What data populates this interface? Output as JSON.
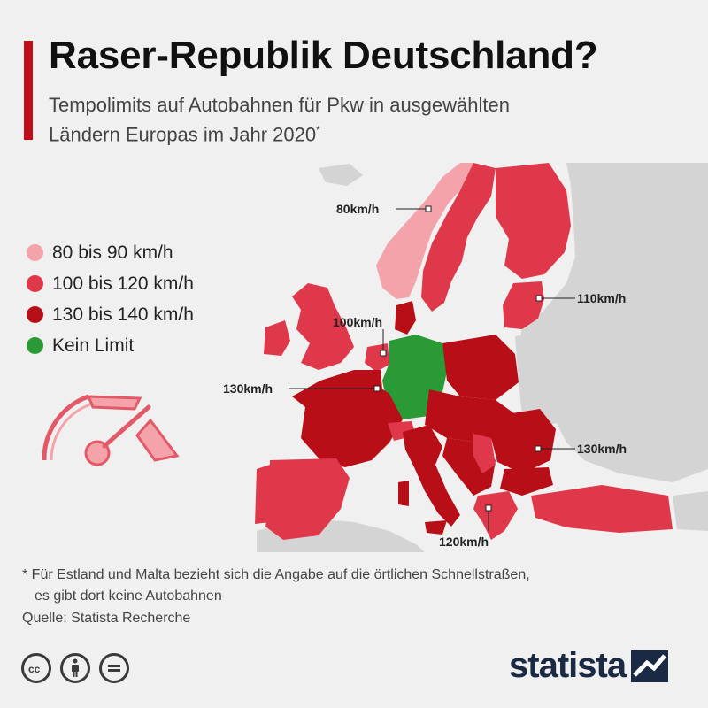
{
  "title": "Raser-Republik Deutschland?",
  "subtitle_line1": "Tempolimits auf Autobahnen für Pkw in ausgewählten",
  "subtitle_line2": "Ländern Europas im Jahr 2020",
  "subtitle_marker": "*",
  "legend": [
    {
      "label": "80 bis 90 km/h",
      "color": "#f4a3ab"
    },
    {
      "label": "100 bis 120 km/h",
      "color": "#e0384b"
    },
    {
      "label": "130 bis 140 km/h",
      "color": "#b70e18"
    },
    {
      "label": "Kein Limit",
      "color": "#2a9a37"
    }
  ],
  "callouts": {
    "norway": "80km/h",
    "estonia": "110km/h",
    "netherlands": "100km/h",
    "france": "130km/h",
    "romania": "130km/h",
    "greece": "120km/h"
  },
  "colors": {
    "other": "#d4d4d4",
    "sea": "#f0f0f0",
    "accent": "#c00d19"
  },
  "footnote_line1": "* Für Estland und Malta bezieht sich die Angabe auf die örtlichen Schnellstraßen,",
  "footnote_line2": "es gibt dort keine Autobahnen",
  "source": "Quelle: Statista Recherche",
  "brand": "statista",
  "icons": [
    "cc-icon",
    "by-person-icon",
    "nd-equals-icon",
    "speedometer-icon",
    "statista-logo-icon"
  ]
}
